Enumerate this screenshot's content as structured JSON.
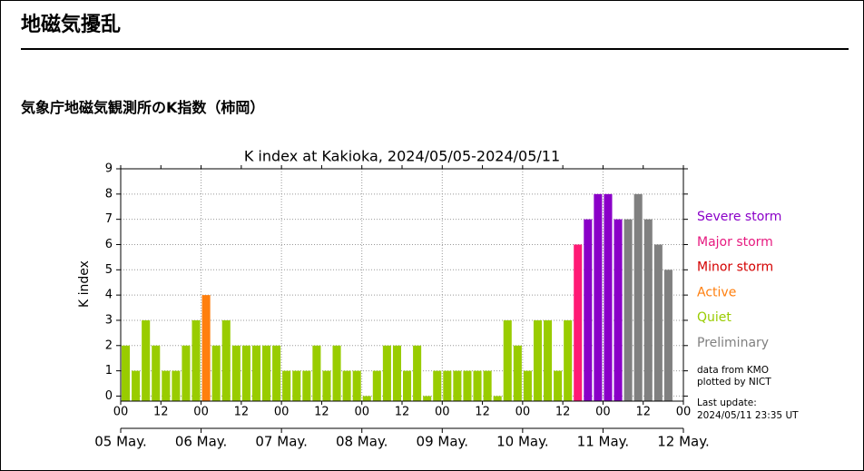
{
  "header": {
    "title": "地磁気擾乱"
  },
  "section": {
    "title": "気象庁地磁気観測所のK指数（柿岡）"
  },
  "chart_data": {
    "type": "bar",
    "title": "K index at Kakioka, 2024/05/05-2024/05/11",
    "y_label": "K index",
    "x": [
      0,
      3,
      6,
      9,
      12,
      15,
      18,
      21,
      24,
      27,
      30,
      33,
      36,
      39,
      42,
      45,
      48,
      51,
      54,
      57,
      60,
      63,
      66,
      69,
      72,
      75,
      78,
      81,
      84,
      87,
      90,
      93,
      96,
      99,
      102,
      105,
      108,
      111,
      114,
      117,
      120,
      123,
      126,
      129,
      132,
      135,
      138,
      141,
      144,
      147,
      150,
      153,
      156,
      159,
      162,
      165
    ],
    "values": [
      2,
      1,
      3,
      2,
      1,
      1,
      2,
      3,
      4,
      2,
      3,
      2,
      2,
      2,
      2,
      2,
      1,
      1,
      1,
      2,
      1,
      2,
      1,
      1,
      0,
      1,
      2,
      2,
      1,
      2,
      0,
      1,
      1,
      1,
      1,
      1,
      1,
      0,
      3,
      2,
      1,
      3,
      3,
      1,
      3,
      6,
      7,
      8,
      8,
      7,
      7,
      8,
      7,
      6,
      5,
      null
    ],
    "colors": [
      "#99cc00",
      "#99cc00",
      "#99cc00",
      "#99cc00",
      "#99cc00",
      "#99cc00",
      "#99cc00",
      "#99cc00",
      "#ff7f0e",
      "#99cc00",
      "#99cc00",
      "#99cc00",
      "#99cc00",
      "#99cc00",
      "#99cc00",
      "#99cc00",
      "#99cc00",
      "#99cc00",
      "#99cc00",
      "#99cc00",
      "#99cc00",
      "#99cc00",
      "#99cc00",
      "#99cc00",
      "#99cc00",
      "#99cc00",
      "#99cc00",
      "#99cc00",
      "#99cc00",
      "#99cc00",
      "#99cc00",
      "#99cc00",
      "#99cc00",
      "#99cc00",
      "#99cc00",
      "#99cc00",
      "#99cc00",
      "#99cc00",
      "#99cc00",
      "#99cc00",
      "#99cc00",
      "#99cc00",
      "#99cc00",
      "#99cc00",
      "#99cc00",
      "#ff1a75",
      "#8a00c8",
      "#8a00c8",
      "#8a00c8",
      "#8a00c8",
      "#808080",
      "#808080",
      "#808080",
      "#808080",
      "#808080",
      "#808080"
    ],
    "xlim": [
      0,
      168
    ],
    "xticks": [
      {
        "value": 0,
        "label": "00"
      },
      12,
      {
        "value": 24,
        "label": "00"
      },
      {
        "value": 36,
        "label": "12"
      },
      {
        "value": 48,
        "label": "00"
      },
      {
        "value": 60,
        "label": "12"
      },
      {
        "value": 72,
        "label": "00"
      },
      {
        "value": 84,
        "label": "12"
      },
      {
        "value": 96,
        "label": "00"
      },
      {
        "value": 108,
        "label": "12"
      },
      {
        "value": 120,
        "label": "00"
      },
      {
        "value": 132,
        "label": "12"
      },
      {
        "value": 144,
        "label": "00"
      },
      {
        "value": 156,
        "label": "12"
      },
      {
        "value": 168,
        "label": "00"
      }
    ],
    "day_ticks": [
      {
        "value": 0,
        "label": "05 May."
      },
      {
        "value": 24,
        "label": "06 May."
      },
      {
        "value": 48,
        "label": "07 May."
      },
      {
        "value": 72,
        "label": "08 May."
      },
      {
        "value": 96,
        "label": "09 May."
      },
      {
        "value": 120,
        "label": "10 May."
      },
      {
        "value": 144,
        "label": "11 May."
      },
      {
        "value": 168,
        "label": "12 May."
      }
    ],
    "ylim": [
      -0.2,
      9
    ],
    "yticks": [
      0,
      1,
      2,
      3,
      4,
      5,
      6,
      7,
      8,
      9
    ],
    "grid": true,
    "legend": [
      {
        "name": "Severe storm",
        "color": "#8a00c8"
      },
      {
        "name": "Major storm",
        "color": "#e6197f"
      },
      {
        "name": "Minor storm",
        "color": "#d40000"
      },
      {
        "name": "Active",
        "color": "#ff7f0e"
      },
      {
        "name": "Quiet",
        "color": "#99cc00"
      },
      {
        "name": "Preliminary",
        "color": "#808080"
      }
    ],
    "notes": [
      "data from KMO",
      "plotted by NICT"
    ],
    "update_label": "Last update:",
    "update_time": "2024/05/11 23:35 UT"
  }
}
